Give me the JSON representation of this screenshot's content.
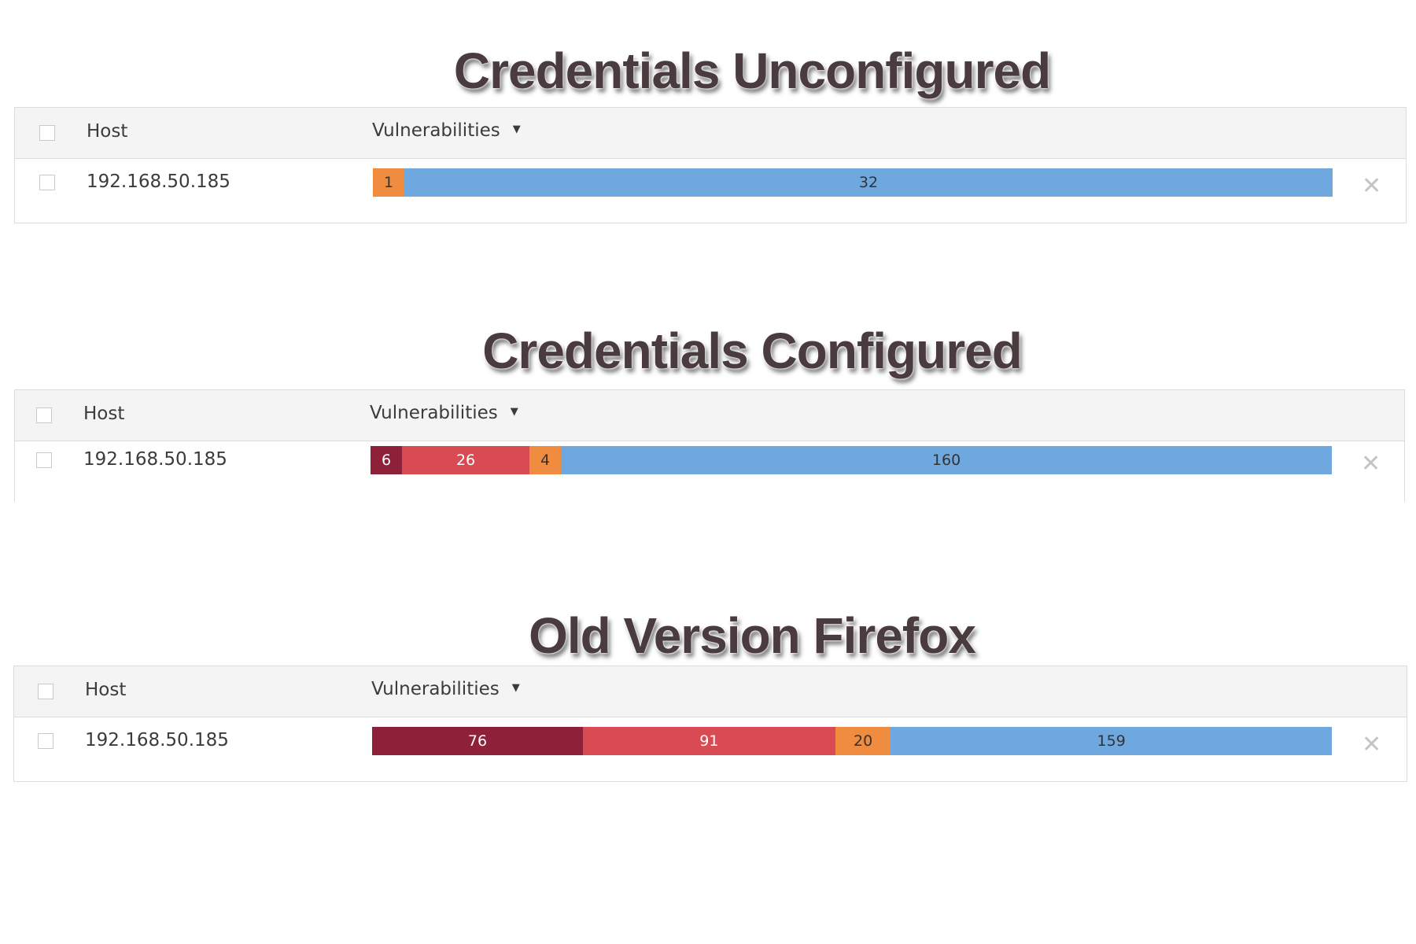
{
  "colors": {
    "critical": "#8e2139",
    "high": "#d84b53",
    "medium": "#ef8c3f",
    "info": "#6fa8df",
    "critical_text": "#ffffff",
    "high_text": "#ffffff",
    "medium_text": "#333333",
    "info_text": "#333333"
  },
  "icons": {
    "sort": "▼",
    "remove": "✕"
  },
  "sections": [
    {
      "title": "Credentials Unconfigured",
      "header": {
        "host": "Host",
        "vulnerabilities": "Vulnerabilities"
      },
      "row": {
        "host": "192.168.50.185",
        "severities": [
          {
            "level": "medium",
            "count": 1
          },
          {
            "level": "info",
            "count": 32
          }
        ]
      }
    },
    {
      "title": "Credentials Configured",
      "header": {
        "host": "Host",
        "vulnerabilities": "Vulnerabilities"
      },
      "row": {
        "host": "192.168.50.185",
        "severities": [
          {
            "level": "critical",
            "count": 6
          },
          {
            "level": "high",
            "count": 26
          },
          {
            "level": "medium",
            "count": 4
          },
          {
            "level": "info",
            "count": 160
          }
        ]
      }
    },
    {
      "title": "Old Version Firefox",
      "header": {
        "host": "Host",
        "vulnerabilities": "Vulnerabilities"
      },
      "row": {
        "host": "192.168.50.185",
        "severities": [
          {
            "level": "critical",
            "count": 76
          },
          {
            "level": "high",
            "count": 91
          },
          {
            "level": "medium",
            "count": 20
          },
          {
            "level": "info",
            "count": 159
          }
        ]
      }
    }
  ]
}
